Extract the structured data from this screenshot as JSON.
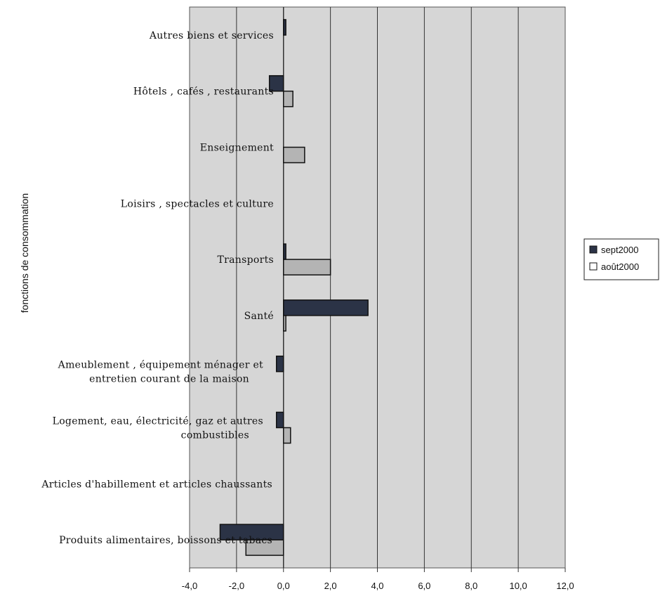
{
  "chart_data": {
    "type": "bar",
    "orientation": "horizontal",
    "title": "",
    "ylabel": "fonctions de consommation",
    "xlabel": "",
    "xlim": [
      -4,
      12
    ],
    "xticks": [
      "-4,0",
      "-2,0",
      "0,0",
      "2,0",
      "4,0",
      "6,0",
      "8,0",
      "10,0",
      "12,0"
    ],
    "grid": true,
    "legend_position": "right",
    "categories": [
      [
        "Autres biens et services"
      ],
      [
        "Hôtels , cafés , restaurants"
      ],
      [
        "Enseignement"
      ],
      [
        "Loisirs , spectacles et culture"
      ],
      [
        "Transports"
      ],
      [
        "Santé"
      ],
      [
        "Ameublement , équipement ménager et",
        "entretien courant de la maison"
      ],
      [
        "Logement, eau, électricité, gaz et autres",
        "combustibles"
      ],
      [
        "Articles d'habillement et articles chaussants"
      ],
      [
        "Produits alimentaires, boissons et tabacs"
      ]
    ],
    "series": [
      {
        "name": "sept2000",
        "color": "#2b3346",
        "values": [
          0.1,
          -0.6,
          0.0,
          0.0,
          0.1,
          3.6,
          -0.3,
          -0.3,
          0.0,
          -2.7
        ]
      },
      {
        "name": "août2000",
        "color": "#b4b4b4",
        "values": [
          0.0,
          0.4,
          0.9,
          0.0,
          2.0,
          0.1,
          0.0,
          0.3,
          0.0,
          -1.6
        ]
      }
    ]
  },
  "legend": {
    "series1": "sept2000",
    "series2": "août2000"
  }
}
